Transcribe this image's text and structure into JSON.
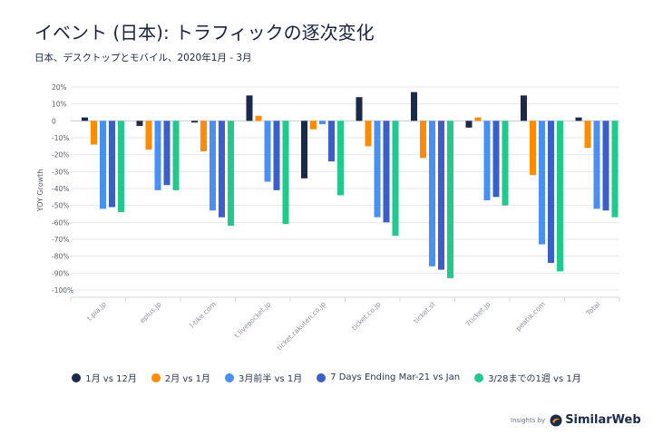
{
  "header": {
    "title": "イベント (日本): トラフィックの逐次変化",
    "subtitle": "日本、デスクトップとモバイル、2020年1月 - 3月"
  },
  "chart_data": {
    "type": "bar",
    "title": "イベント (日本): トラフィックの逐次変化",
    "subtitle": "日本、デスクトップとモバイル、2020年1月 - 3月",
    "xlabel": "",
    "ylabel": "YOY Growth",
    "ylim": [
      -100,
      20
    ],
    "yticks": [
      20,
      10,
      0,
      -10,
      -20,
      -30,
      -40,
      -50,
      -60,
      -70,
      -80,
      -90,
      -100
    ],
    "ytick_labels": [
      "20%",
      "10%",
      "0",
      "-10%",
      "-20%",
      "-30%",
      "-40%",
      "-50%",
      "-60%",
      "-70%",
      "-80%",
      "-90%",
      "-100%"
    ],
    "grid": true,
    "legend_position": "bottom",
    "categories": [
      "t.pia.jp",
      "eplus.jp",
      "l-tike.com",
      "t.livepocket.jp",
      "ticket.rakuten.co.jp",
      "ticket.co.jp",
      "ticket.st",
      "7ticket.jp",
      "peatix.com",
      "Total"
    ],
    "series": [
      {
        "name": "1月 vs 12月",
        "color": "#1b2a4a",
        "values": [
          2,
          -3,
          -1,
          15,
          -34,
          14,
          17,
          -4,
          15,
          2
        ]
      },
      {
        "name": "2月 vs 1月",
        "color": "#ff8c00",
        "values": [
          -14,
          -17,
          -18,
          3,
          -5,
          -15,
          -22,
          2,
          -32,
          -16
        ]
      },
      {
        "name": "3月前半 vs 1月",
        "color": "#4a90f2",
        "values": [
          -52,
          -41,
          -53,
          -36,
          -2,
          -57,
          -86,
          -47,
          -73,
          -52
        ]
      },
      {
        "name": "7 Days Ending Mar-21 vs Jan",
        "color": "#3b5ec7",
        "values": [
          -51,
          -38,
          -57,
          -41,
          -24,
          -60,
          -88,
          -45,
          -84,
          -53
        ]
      },
      {
        "name": "3/28までの1週 vs 1月",
        "color": "#21c98d",
        "values": [
          -54,
          -41,
          -62,
          -61,
          -44,
          -68,
          -93,
          -50,
          -89,
          -57
        ]
      }
    ]
  },
  "brand": {
    "prefix": "Insights by",
    "name": "SimilarWeb"
  }
}
